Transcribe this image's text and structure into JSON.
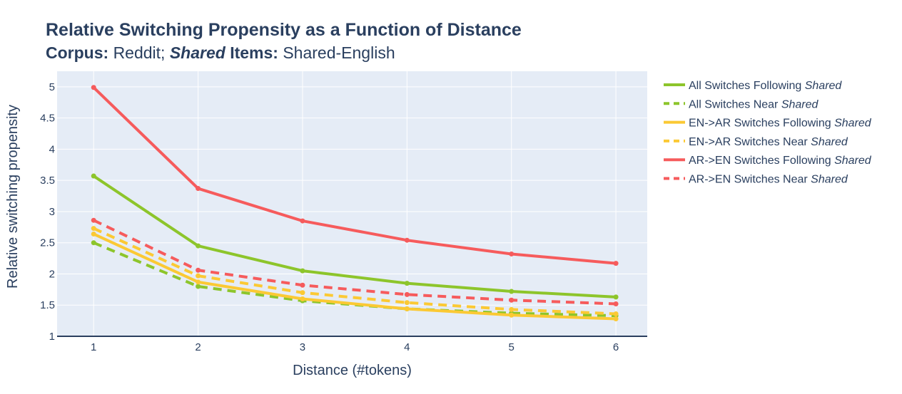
{
  "title": {
    "main": "Relative Switching Propensity as a Function of Distance",
    "corpus_label": "Corpus:",
    "corpus_value": "Reddit;",
    "shared_label": "Shared",
    "items_label": "Items:",
    "items_value": "Shared-English"
  },
  "colors": {
    "plot_bg": "#e5ecf6",
    "grid": "#ffffff",
    "axis_line": "#2a3f5f",
    "green": "#8dc52b",
    "yellow": "#fbc934",
    "red": "#f65b5c"
  },
  "chart_data": {
    "type": "line",
    "xlabel": "Distance (#tokens)",
    "ylabel": "Relative switching propensity",
    "x": [
      1,
      2,
      3,
      4,
      5,
      6
    ],
    "xlim": [
      0.65,
      6.3
    ],
    "ylim": [
      1,
      5.25
    ],
    "xticks": [
      "1",
      "2",
      "3",
      "4",
      "5",
      "6"
    ],
    "yticks": [
      "1",
      "1.5",
      "2",
      "2.5",
      "3",
      "3.5",
      "4",
      "4.5",
      "5"
    ],
    "grid": true,
    "legend_position": "right",
    "series": [
      {
        "name": "All Switches Following",
        "name_italic": "Shared",
        "color": "green",
        "dash": "solid",
        "values": [
          3.57,
          2.45,
          2.05,
          1.85,
          1.72,
          1.63
        ]
      },
      {
        "name": "All Switches Near",
        "name_italic": "Shared",
        "color": "green",
        "dash": "dash",
        "values": [
          2.5,
          1.8,
          1.57,
          1.44,
          1.37,
          1.33
        ]
      },
      {
        "name": "EN->AR Switches Following",
        "name_italic": "Shared",
        "color": "yellow",
        "dash": "solid",
        "values": [
          2.64,
          1.87,
          1.6,
          1.44,
          1.34,
          1.28
        ]
      },
      {
        "name": "EN->AR Switches Near",
        "name_italic": "Shared",
        "color": "yellow",
        "dash": "dash",
        "values": [
          2.73,
          1.97,
          1.7,
          1.54,
          1.43,
          1.36
        ]
      },
      {
        "name": "AR->EN Switches Following",
        "name_italic": "Shared",
        "color": "red",
        "dash": "solid",
        "values": [
          4.99,
          3.37,
          2.85,
          2.54,
          2.32,
          2.17
        ]
      },
      {
        "name": "AR->EN Switches Near",
        "name_italic": "Shared",
        "color": "red",
        "dash": "dash",
        "values": [
          2.86,
          2.06,
          1.82,
          1.67,
          1.58,
          1.52
        ]
      }
    ]
  }
}
